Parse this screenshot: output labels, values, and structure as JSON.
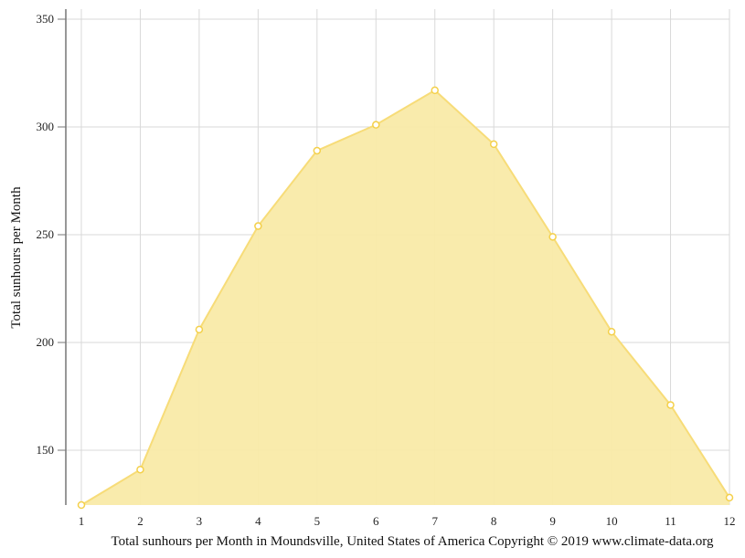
{
  "chart_data": {
    "type": "area",
    "title": "",
    "caption": "Total sunhours per Month in Moundsville, United States of America Copyright © 2019 www.climate-data.org",
    "xlabel": "",
    "ylabel": "Total sunhours per Month",
    "categories": [
      "1",
      "2",
      "3",
      "4",
      "5",
      "6",
      "7",
      "8",
      "9",
      "10",
      "11",
      "12"
    ],
    "series": [
      {
        "name": "Total sunhours per Month",
        "values": [
          124,
          141,
          206,
          254,
          289,
          301,
          317,
          292,
          249,
          205,
          171,
          128
        ]
      }
    ],
    "yticks": [
      150,
      200,
      250,
      300,
      350
    ],
    "ylim": [
      124.6,
      350
    ],
    "grid": true,
    "legend": "none",
    "colors": {
      "fill": "#f9eaa8",
      "line": "#f7dc78",
      "marker_stroke": "#f4d04a",
      "marker_fill": "#ffffff",
      "grid": "#d9d9d9",
      "axis": "#777777"
    }
  }
}
